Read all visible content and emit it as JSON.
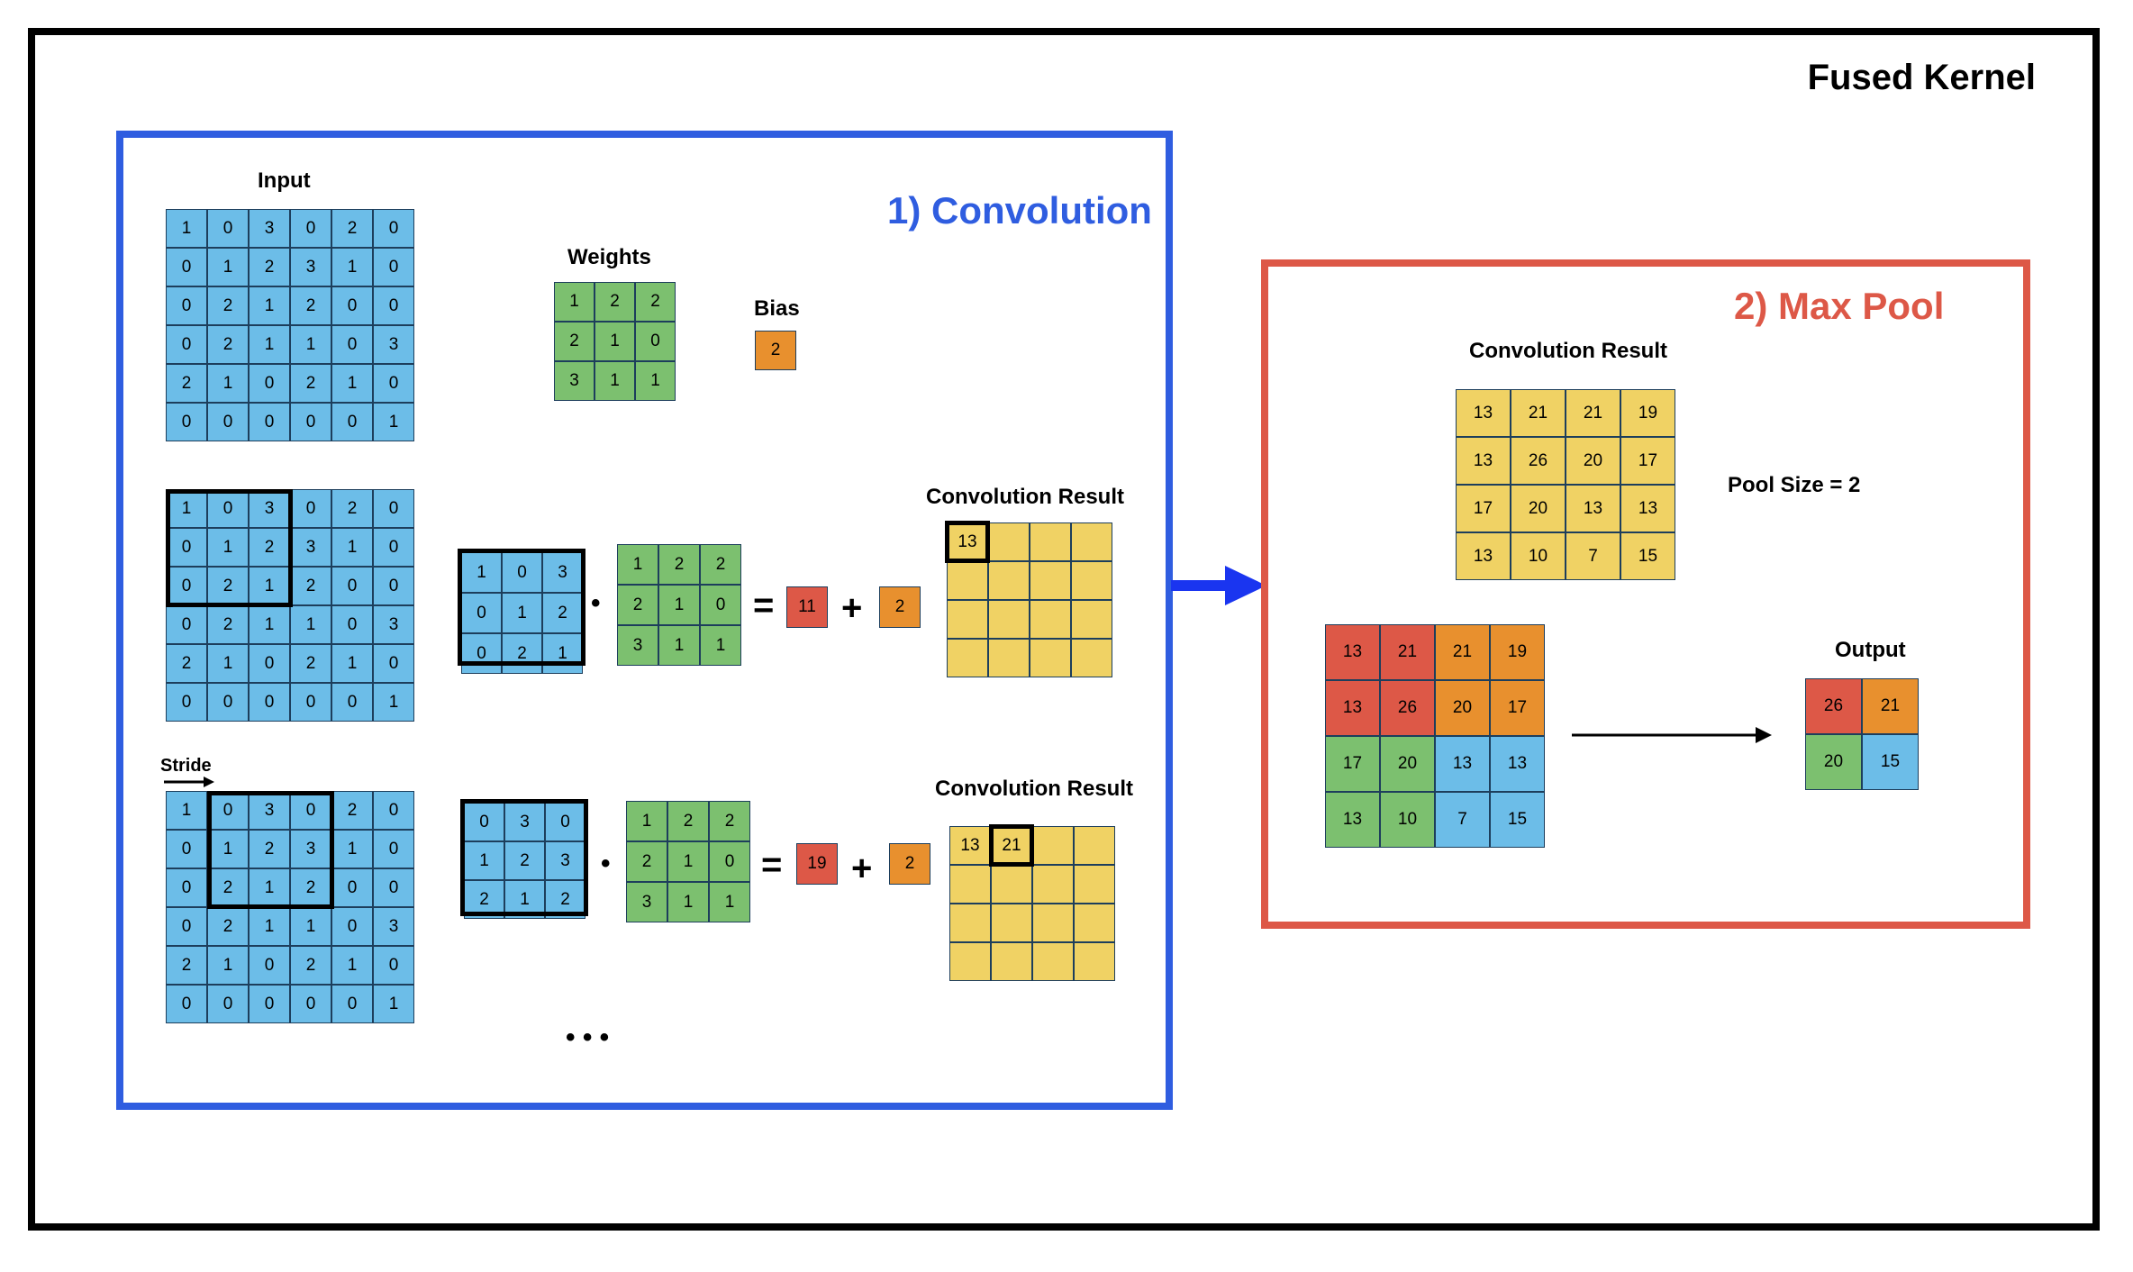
{
  "frame_title": "Fused Kernel",
  "convolution": {
    "title": "1) Convolution",
    "input_label": "Input",
    "weights_label": "Weights",
    "bias_label": "Bias",
    "stride_label": "Stride",
    "result_label": "Convolution Result",
    "ellipsis": "• • •",
    "input": [
      [
        1,
        0,
        3,
        0,
        2,
        0
      ],
      [
        0,
        1,
        2,
        3,
        1,
        0
      ],
      [
        0,
        2,
        1,
        2,
        0,
        0
      ],
      [
        0,
        2,
        1,
        1,
        0,
        3
      ],
      [
        2,
        1,
        0,
        2,
        1,
        0
      ],
      [
        0,
        0,
        0,
        0,
        0,
        1
      ]
    ],
    "weights": [
      [
        1,
        2,
        2
      ],
      [
        2,
        1,
        0
      ],
      [
        3,
        1,
        1
      ]
    ],
    "bias": 2,
    "step1": {
      "window": [
        [
          1,
          0,
          3
        ],
        [
          0,
          1,
          2
        ],
        [
          0,
          2,
          1
        ]
      ],
      "dot": 11,
      "result_row": [
        "13",
        "",
        "",
        ""
      ]
    },
    "step2": {
      "window": [
        [
          0,
          3,
          0
        ],
        [
          1,
          2,
          3
        ],
        [
          2,
          1,
          2
        ]
      ],
      "dot": 19,
      "result_row": [
        "13",
        "21",
        "",
        ""
      ]
    },
    "equals": "=",
    "plus": "+",
    "dot_op": "•"
  },
  "maxpool": {
    "title": "2) Max Pool",
    "result_label": "Convolution Result",
    "pool_size_label": "Pool Size = 2",
    "output_label": "Output",
    "conv_result": [
      [
        13,
        21,
        21,
        19
      ],
      [
        13,
        26,
        20,
        17
      ],
      [
        17,
        20,
        13,
        13
      ],
      [
        13,
        10,
        7,
        15
      ]
    ],
    "output": [
      [
        26,
        21
      ],
      [
        20,
        15
      ]
    ]
  },
  "colors": {
    "input": "#6cbde8",
    "weights": "#7cc06f",
    "result": "#f0d264",
    "bias": "#e8902e",
    "dot_result": "#dd5847",
    "convolution_accent": "#2f5de0",
    "maxpool_accent": "#dd5847",
    "arrow": "#1a35f0"
  }
}
